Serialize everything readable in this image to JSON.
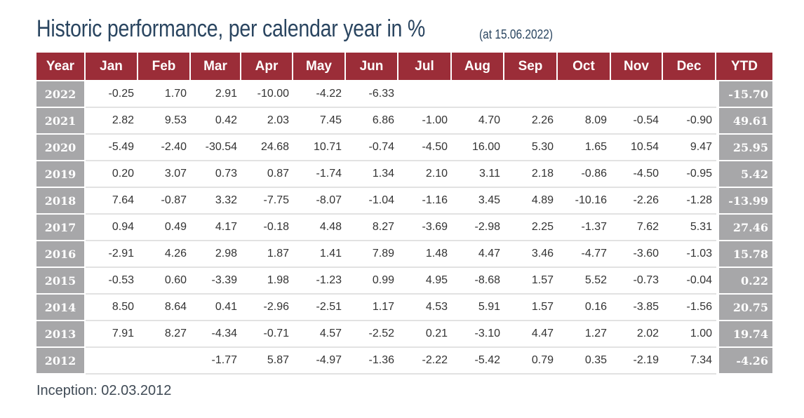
{
  "header": {
    "title": "Historic performance, per calendar year in %",
    "subtitle": "(at 15.06.2022)"
  },
  "table": {
    "columns": [
      "Year",
      "Jan",
      "Feb",
      "Mar",
      "Apr",
      "May",
      "Jun",
      "Jul",
      "Aug",
      "Sep",
      "Oct",
      "Nov",
      "Dec",
      "YTD"
    ],
    "rows": [
      {
        "year": "2022",
        "months": [
          "-0.25",
          "1.70",
          "2.91",
          "-10.00",
          "-4.22",
          "-6.33",
          "",
          "",
          "",
          "",
          "",
          ""
        ],
        "ytd": "-15.70"
      },
      {
        "year": "2021",
        "months": [
          "2.82",
          "9.53",
          "0.42",
          "2.03",
          "7.45",
          "6.86",
          "-1.00",
          "4.70",
          "2.26",
          "8.09",
          "-0.54",
          "-0.90"
        ],
        "ytd": "49.61"
      },
      {
        "year": "2020",
        "months": [
          "-5.49",
          "-2.40",
          "-30.54",
          "24.68",
          "10.71",
          "-0.74",
          "-4.50",
          "16.00",
          "5.30",
          "1.65",
          "10.54",
          "9.47"
        ],
        "ytd": "25.95"
      },
      {
        "year": "2019",
        "months": [
          "0.20",
          "3.07",
          "0.73",
          "0.87",
          "-1.74",
          "1.34",
          "2.10",
          "3.11",
          "2.18",
          "-0.86",
          "-4.50",
          "-0.95"
        ],
        "ytd": "5.42"
      },
      {
        "year": "2018",
        "months": [
          "7.64",
          "-0.87",
          "3.32",
          "-7.75",
          "-8.07",
          "-1.04",
          "-1.16",
          "3.45",
          "4.89",
          "-10.16",
          "-2.26",
          "-1.28"
        ],
        "ytd": "-13.99"
      },
      {
        "year": "2017",
        "months": [
          "0.94",
          "0.49",
          "4.17",
          "-0.18",
          "4.48",
          "8.27",
          "-3.69",
          "-2.98",
          "2.25",
          "-1.37",
          "7.62",
          "5.31"
        ],
        "ytd": "27.46"
      },
      {
        "year": "2016",
        "months": [
          "-2.91",
          "4.26",
          "2.98",
          "1.87",
          "1.41",
          "7.89",
          "1.48",
          "4.47",
          "3.46",
          "-4.77",
          "-3.60",
          "-1.03"
        ],
        "ytd": "15.78"
      },
      {
        "year": "2015",
        "months": [
          "-0.53",
          "0.60",
          "-3.39",
          "1.98",
          "-1.23",
          "0.99",
          "4.95",
          "-8.68",
          "1.57",
          "5.52",
          "-0.73",
          "-0.04"
        ],
        "ytd": "0.22"
      },
      {
        "year": "2014",
        "months": [
          "8.50",
          "8.64",
          "0.41",
          "-2.96",
          "-2.51",
          "1.17",
          "4.53",
          "5.91",
          "1.57",
          "0.16",
          "-3.85",
          "-1.56"
        ],
        "ytd": "20.75"
      },
      {
        "year": "2013",
        "months": [
          "7.91",
          "8.27",
          "-4.34",
          "-0.71",
          "4.57",
          "-2.52",
          "0.21",
          "-3.10",
          "4.47",
          "1.27",
          "2.02",
          "1.00"
        ],
        "ytd": "19.74"
      },
      {
        "year": "2012",
        "months": [
          "",
          "",
          "-1.77",
          "5.87",
          "-4.97",
          "-1.36",
          "-2.22",
          "-5.42",
          "0.79",
          "0.35",
          "-2.19",
          "7.34"
        ],
        "ytd": "-4.26"
      }
    ]
  },
  "footnote": "Inception: 02.03.2012",
  "colors": {
    "header_bg": "#9b2d38",
    "year_bg": "#a7a7a9",
    "title_color": "#2a4560"
  }
}
